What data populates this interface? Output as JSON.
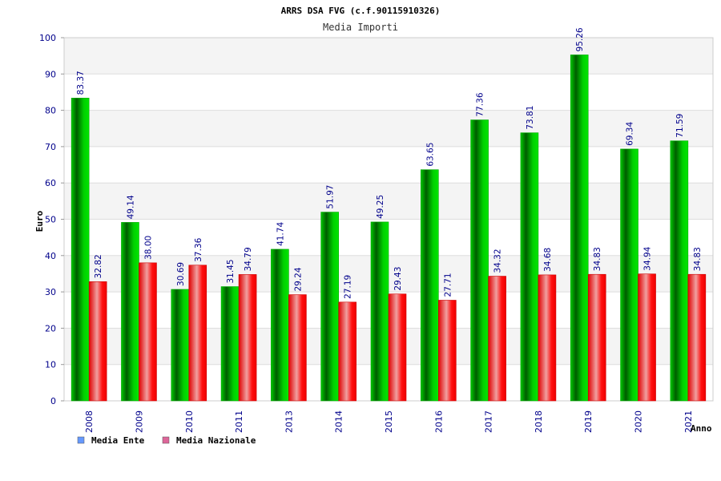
{
  "chart_data": {
    "type": "bar",
    "title": "ARRS DSA FVG (c.f.90115910326)",
    "subtitle": "Media Importi",
    "ylabel": "Euro",
    "xlabel": "Anno",
    "ylim": [
      0,
      100
    ],
    "yticks": [
      "0",
      "10",
      "20",
      "30",
      "40",
      "50",
      "60",
      "70",
      "80",
      "90",
      "100"
    ],
    "grid": true,
    "legend_position": "bottom-left",
    "categories": [
      "2008",
      "2009",
      "2010",
      "2011",
      "2013",
      "2014",
      "2015",
      "2016",
      "2017",
      "2018",
      "2019",
      "2020",
      "2021"
    ],
    "series": [
      {
        "name": "Media Ente",
        "color": "#00cc00",
        "legend_color": "#6699ff",
        "values": [
          83.37,
          49.14,
          30.69,
          31.45,
          41.74,
          51.97,
          49.25,
          63.65,
          77.36,
          73.81,
          95.26,
          69.34,
          71.59
        ],
        "labels": [
          "83.37",
          "49.14",
          "30.69",
          "31.45",
          "41.74",
          "51.97",
          "49.25",
          "63.65",
          "77.36",
          "73.81",
          "95.26",
          "69.34",
          "71.59"
        ]
      },
      {
        "name": "Media Nazionale",
        "color": "#ee0000",
        "legend_color": "#dd6699",
        "values": [
          32.82,
          38.0,
          37.36,
          34.79,
          29.24,
          27.19,
          29.43,
          27.71,
          34.32,
          34.68,
          34.83,
          34.94,
          34.83
        ],
        "labels": [
          "32.82",
          "38.00",
          "37.36",
          "34.79",
          "29.24",
          "27.19",
          "29.43",
          "27.71",
          "34.32",
          "34.68",
          "34.83",
          "34.94",
          "34.83"
        ]
      }
    ]
  }
}
